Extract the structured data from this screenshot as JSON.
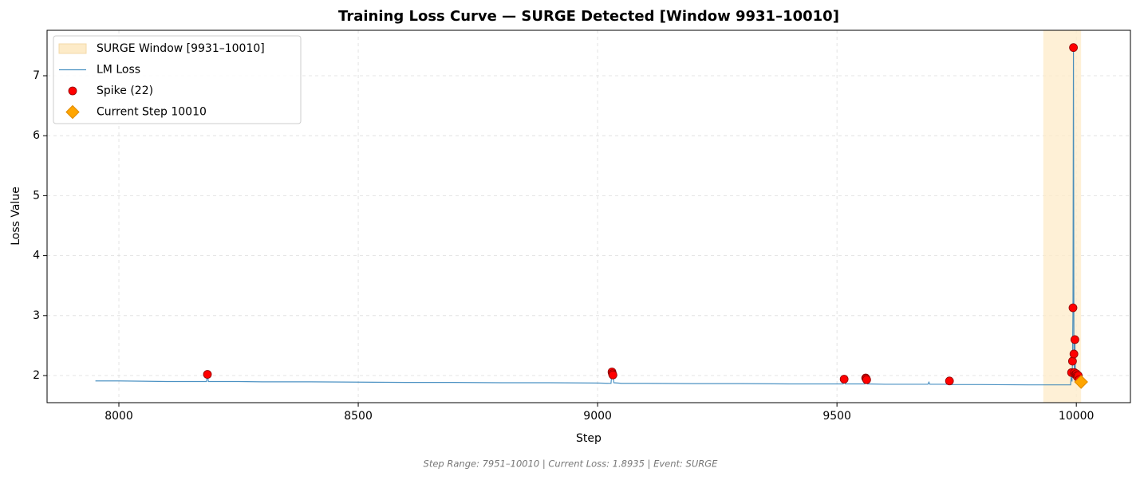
{
  "chart_data": {
    "type": "line",
    "title": "Training Loss Curve — SURGE Detected [Window 9931–10010]",
    "xlabel": "Step",
    "ylabel": "Loss Value",
    "footer": "Step Range: 7951–10010 | Current Loss: 1.8935 | Event: SURGE",
    "xlim": [
      7850,
      10113
    ],
    "ylim": [
      1.548,
      7.758
    ],
    "xticks": [
      8000,
      8500,
      9000,
      9500,
      10000
    ],
    "yticks": [
      2,
      3,
      4,
      5,
      6,
      7
    ],
    "grid": true,
    "legend": "upper left",
    "series": [
      {
        "kind": "span",
        "name": "SURGE Window [9931–10010]",
        "color": "#fdebc8",
        "start": 9931,
        "end": 10010
      },
      {
        "kind": "line",
        "name": "LM Loss",
        "color": "#1f77b4",
        "x": [
          7951,
          8000,
          8050,
          8100,
          8150,
          8183,
          8185,
          8187,
          8250,
          8300,
          8400,
          8500,
          8600,
          8700,
          8800,
          8900,
          9000,
          9028,
          9030,
          9032,
          9034,
          9050,
          9100,
          9200,
          9300,
          9400,
          9500,
          9513,
          9515,
          9517,
          9558,
          9560,
          9562,
          9564,
          9600,
          9690,
          9692,
          9694,
          9733,
          9735,
          9737,
          9800,
          9900,
          9950,
          9988,
          9990,
          9991,
          9992,
          9993,
          9994,
          9995,
          9996,
          9997,
          9998,
          9999,
          10000,
          10002,
          10004,
          10006,
          10008,
          10010
        ],
        "values": [
          1.91,
          1.91,
          1.905,
          1.9,
          1.9,
          1.9,
          2.02,
          1.9,
          1.9,
          1.895,
          1.895,
          1.89,
          1.885,
          1.885,
          1.88,
          1.88,
          1.875,
          1.87,
          2.06,
          2.01,
          1.88,
          1.87,
          1.87,
          1.865,
          1.865,
          1.86,
          1.86,
          1.86,
          1.94,
          1.86,
          1.86,
          1.96,
          1.93,
          1.86,
          1.855,
          1.855,
          1.89,
          1.855,
          1.855,
          1.91,
          1.85,
          1.85,
          1.845,
          1.845,
          1.845,
          2.05,
          1.9,
          2.24,
          3.13,
          7.47,
          2.36,
          2.05,
          2.6,
          2.02,
          1.95,
          2.03,
          1.98,
          2.0,
          1.93,
          1.9,
          1.8935
        ]
      },
      {
        "kind": "scatter",
        "name": "Spike (22)",
        "color": "#ff0000",
        "x": [
          8185,
          9030,
          9031,
          9032,
          9515,
          9560,
          9561,
          9562,
          9735,
          9990,
          9992,
          9993,
          9994,
          9995,
          9996,
          9997,
          9998,
          10000,
          10001,
          10002,
          10004,
          10006
        ],
        "values": [
          2.02,
          2.06,
          2.03,
          2.01,
          1.94,
          1.96,
          1.95,
          1.93,
          1.91,
          2.05,
          2.24,
          3.13,
          7.47,
          2.36,
          2.05,
          2.6,
          2.02,
          2.03,
          2.0,
          1.98,
          2.0,
          1.93
        ]
      },
      {
        "kind": "diamond",
        "name": "Current Step 10010",
        "color": "#ffa500",
        "x": [
          10010
        ],
        "values": [
          1.8935
        ]
      }
    ]
  }
}
